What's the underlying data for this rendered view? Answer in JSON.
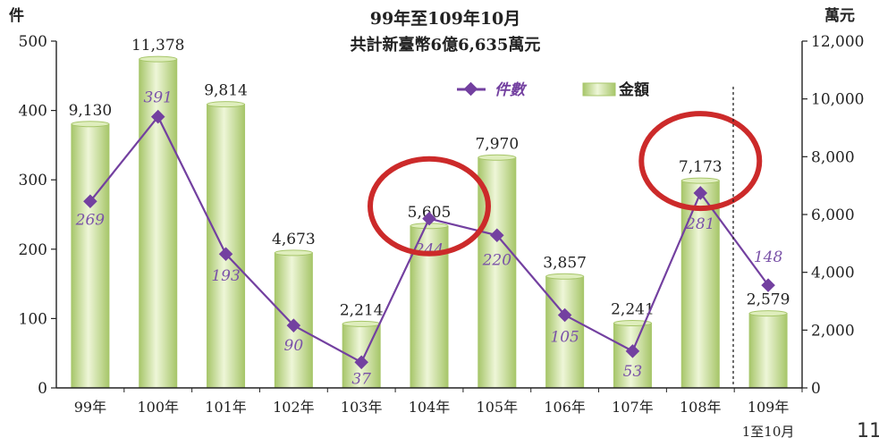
{
  "chart_data": {
    "type": "bar+line",
    "title": "99年至109年10月",
    "subtitle": "共計新臺幣6億6,635萬元",
    "left_axis_unit": "件",
    "right_axis_unit": "萬元",
    "categories": [
      "99年",
      "100年",
      "101年",
      "102年",
      "103年",
      "104年",
      "105年",
      "106年",
      "107年",
      "108年",
      "109年"
    ],
    "category_sublabels": [
      "",
      "",
      "",
      "",
      "",
      "",
      "",
      "",
      "",
      "",
      "1至10月"
    ],
    "bar_series": {
      "name": "金額",
      "axis": "right",
      "values": [
        9130,
        11378,
        9814,
        4673,
        2214,
        5605,
        7970,
        3857,
        2241,
        7173,
        2579
      ],
      "labels": [
        "9,130",
        "11,378",
        "9,814",
        "4,673",
        "2,214",
        "5,605",
        "7,970",
        "3,857",
        "2,241",
        "7,173",
        "2,579"
      ]
    },
    "line_series": {
      "name": "件數",
      "axis": "left",
      "values": [
        269,
        391,
        193,
        90,
        37,
        244,
        220,
        105,
        53,
        281,
        148
      ],
      "labels": [
        "269",
        "391",
        "193",
        "90",
        "37",
        "244",
        "220",
        "105",
        "53",
        "281",
        "148"
      ]
    },
    "left_axis": {
      "ylim": [
        0,
        500
      ],
      "ticks": [
        "0",
        "100",
        "200",
        "300",
        "400",
        "500"
      ]
    },
    "right_axis": {
      "ylim": [
        0,
        12000
      ],
      "ticks": [
        "0",
        "2,000",
        "4,000",
        "6,000",
        "8,000",
        "10,000",
        "12,000"
      ]
    },
    "highlighted_categories": [
      "104年",
      "108年"
    ],
    "legend": {
      "position": "top-right"
    },
    "grid": false
  },
  "page_number": "11",
  "colors": {
    "bar_light": "#eef6d8",
    "bar_dark": "#a7c66a",
    "line": "#7340a0",
    "highlight_circle": "#cc2a2a",
    "text": "#222222"
  }
}
